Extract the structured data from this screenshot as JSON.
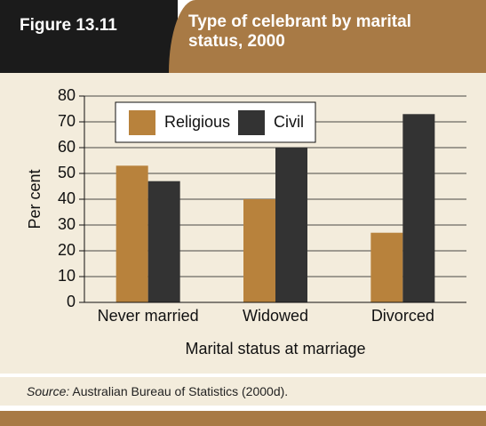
{
  "header": {
    "figure": "Figure 13.11"
  },
  "chart_data": {
    "type": "bar",
    "title": "Type of celebrant by marital status, 2000",
    "xlabel": "Marital status at marriage",
    "ylabel": "Per cent",
    "categories": [
      "Never married",
      "Widowed",
      "Divorced"
    ],
    "series": [
      {
        "name": "Religious",
        "color": "#b8823c",
        "values": [
          53,
          40,
          27
        ]
      },
      {
        "name": "Civil",
        "color": "#333333",
        "values": [
          47,
          60,
          73
        ]
      }
    ],
    "ylim": [
      0,
      80
    ],
    "yticks": [
      0,
      10,
      20,
      30,
      40,
      50,
      60,
      70,
      80
    ],
    "grid": true,
    "legend": "top-left"
  },
  "source": {
    "label": "Source:",
    "text": "Australian Bureau of Statistics (2000d)."
  }
}
